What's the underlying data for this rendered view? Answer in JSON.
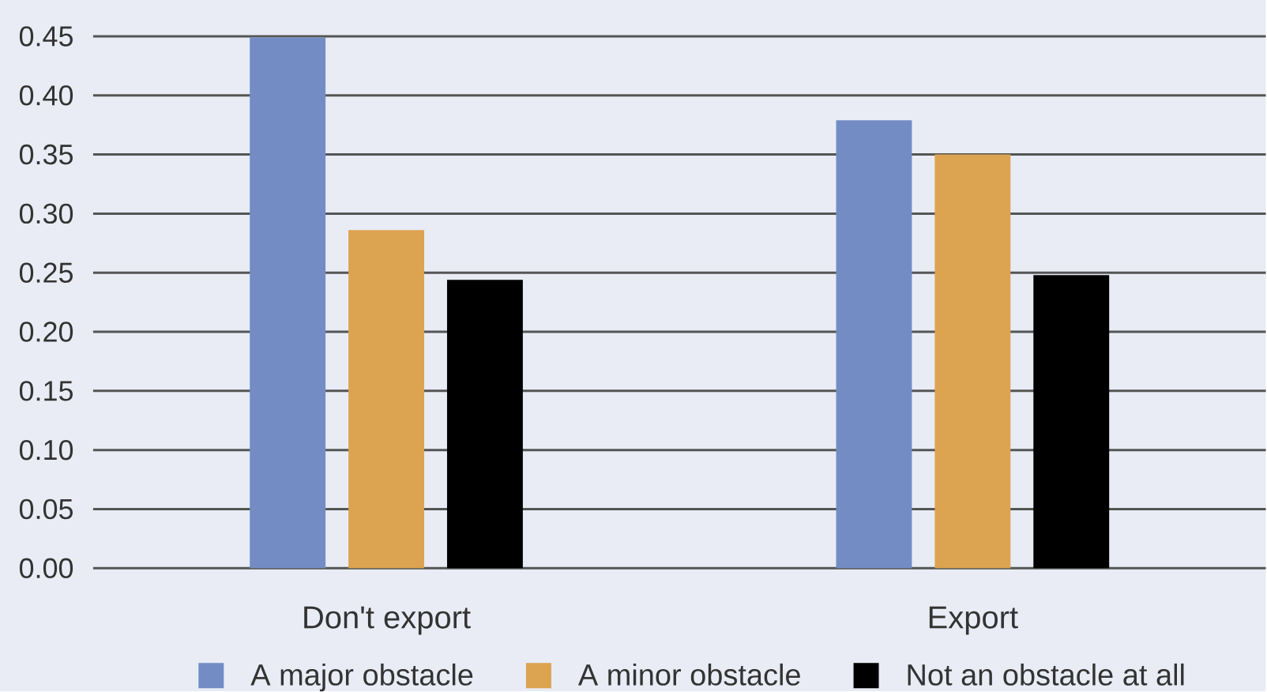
{
  "chart_data": {
    "type": "bar",
    "categories": [
      "Don't export",
      "Export"
    ],
    "series": [
      {
        "name": "A major obstacle",
        "color": "#738dc4",
        "values": [
          0.449,
          0.379
        ]
      },
      {
        "name": "A minor obstacle",
        "color": "#dca351",
        "values": [
          0.286,
          0.35
        ]
      },
      {
        "name": "Not an obstacle at all",
        "color": "#000000",
        "values": [
          0.244,
          0.248
        ]
      }
    ],
    "ylim": [
      0,
      0.45
    ],
    "yticks": [
      {
        "value": 0,
        "label": "0.00"
      },
      0.05,
      {
        "value": 0.1,
        "label": "0.10"
      },
      0.15,
      {
        "value": 0.2,
        "label": "0.20"
      },
      0.25,
      {
        "value": 0.3,
        "label": "0.30"
      },
      0.35,
      {
        "value": 0.4,
        "label": "0.40"
      },
      0.45
    ],
    "grid": "y",
    "legend": "bottom"
  }
}
